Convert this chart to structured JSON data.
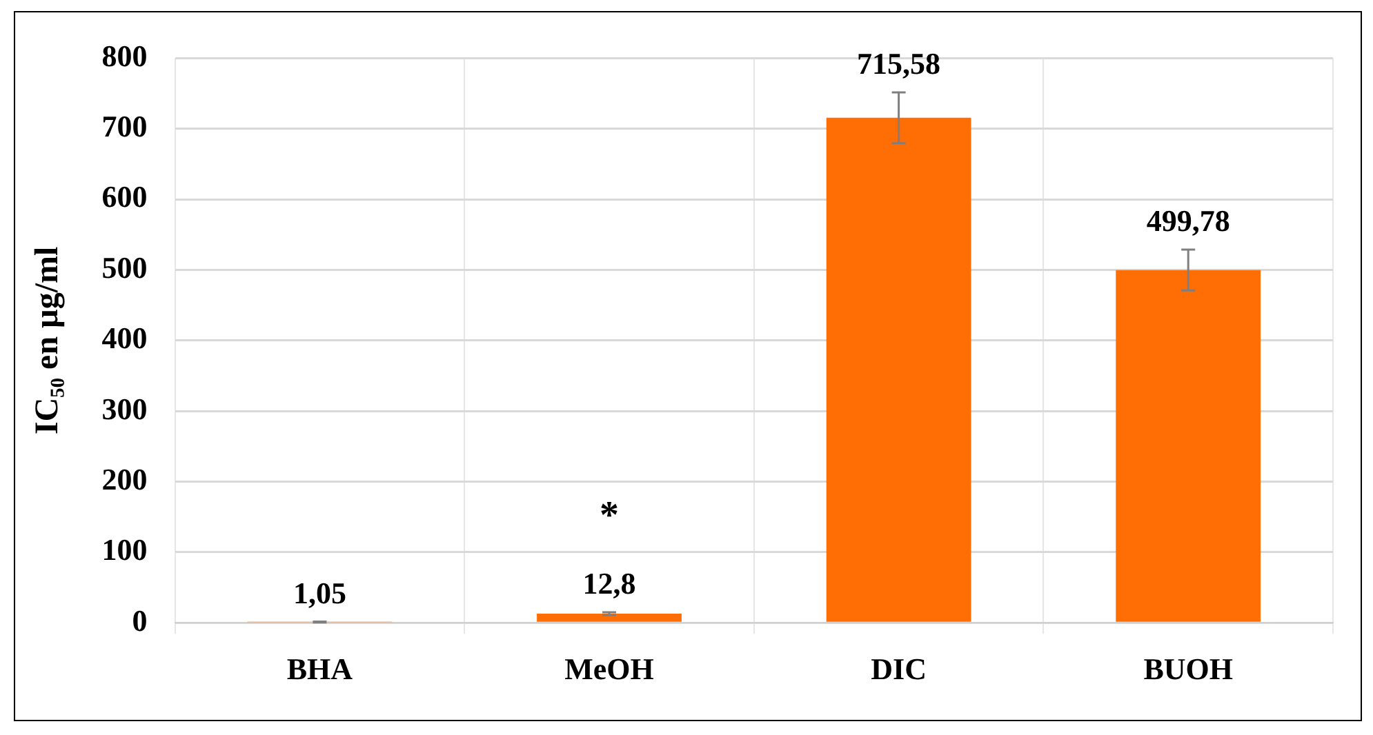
{
  "chart_data": {
    "type": "bar",
    "ylabel": "IC₅₀ en µg/ml",
    "categories": [
      "BHA",
      "MeOH",
      "DIC",
      "BUOH"
    ],
    "values": [
      1.05,
      12.8,
      715.58,
      499.78
    ],
    "color": "#ff6d05",
    "errors": [
      0.5,
      2,
      36,
      29
    ],
    "value_labels": [
      "1,05",
      "12,8",
      "715,58",
      "499,78"
    ],
    "annotations": [
      {
        "text": "*",
        "x": "MeOH",
        "y": 12.8
      }
    ],
    "ylim": [
      0,
      800
    ],
    "yticks": [
      0,
      100,
      200,
      300,
      400,
      500,
      600,
      700,
      800
    ],
    "grid": true
  }
}
